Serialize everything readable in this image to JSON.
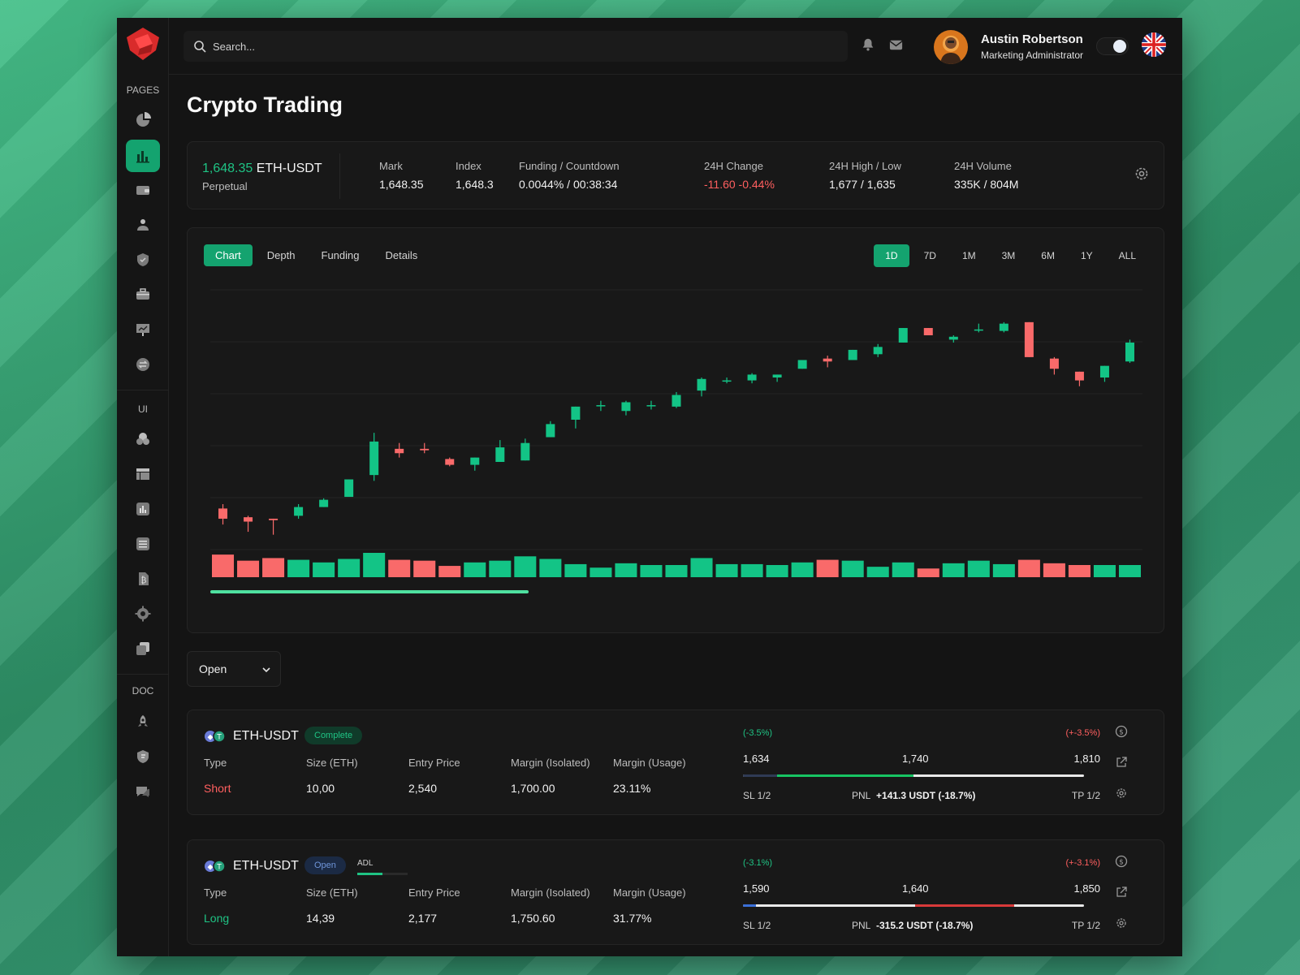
{
  "sidebar": {
    "sections": [
      "PAGES",
      "UI",
      "DOC"
    ],
    "pages_icons": [
      "pie-chart-icon",
      "bar-chart-icon",
      "wallet-icon",
      "user-coin-icon",
      "shield-icon",
      "briefcase-icon",
      "presentation-icon",
      "exchange-icon"
    ],
    "ui_icons": [
      "shapes-icon",
      "layout-icon",
      "chart-icon",
      "list-icon",
      "bitcoin-doc-icon",
      "settings-icon",
      "copy-icon"
    ],
    "doc_icons": [
      "rocket-icon",
      "badge-icon",
      "chat-icon"
    ]
  },
  "topbar": {
    "search_placeholder": "Search...",
    "user_name": "Austin Robertson",
    "user_role": "Marketing Administrator"
  },
  "page": {
    "title": "Crypto Trading"
  },
  "ticker": {
    "price": "1,648.35",
    "pair": "ETH-USDT",
    "type": "Perpetual",
    "stats": [
      {
        "label": "Mark",
        "value": "1,648.35"
      },
      {
        "label": "Index",
        "value": "1,648.3"
      },
      {
        "label": "Funding / Countdown",
        "value": "0.0044% / 00:38:34"
      },
      {
        "label": "24H Change",
        "value": "-11.60 -0.44%"
      },
      {
        "label": "24H High / Low",
        "value": "1,677 / 1,635"
      },
      {
        "label": "24H Volume",
        "value": "335K / 804M"
      }
    ]
  },
  "chart": {
    "tabs": [
      "Chart",
      "Depth",
      "Funding",
      "Details"
    ],
    "active_tab": "Chart",
    "ranges": [
      "1D",
      "7D",
      "1M",
      "3M",
      "6M",
      "1Y",
      "ALL"
    ],
    "active_range": "1D",
    "colors": {
      "up": "#13c486",
      "down": "#f96a6a"
    }
  },
  "chart_data": {
    "type": "candlestick",
    "grid": true,
    "candles": [
      {
        "o": 610,
        "c": 603,
        "h": 613,
        "l": 599,
        "v": 26
      },
      {
        "o": 604,
        "c": 601,
        "h": 605,
        "l": 594,
        "v": 19
      },
      {
        "o": 603,
        "c": 602,
        "h": 603,
        "l": 592,
        "v": 22
      },
      {
        "o": 605,
        "c": 611,
        "h": 613,
        "l": 603,
        "v": 20
      },
      {
        "o": 611,
        "c": 616,
        "h": 617,
        "l": 611,
        "v": 17
      },
      {
        "o": 618,
        "c": 630,
        "h": 630,
        "l": 618,
        "v": 21
      },
      {
        "o": 633,
        "c": 656,
        "h": 662,
        "l": 629,
        "v": 28
      },
      {
        "o": 651,
        "c": 648,
        "h": 655,
        "l": 645,
        "v": 20
      },
      {
        "o": 651,
        "c": 650,
        "h": 655,
        "l": 648,
        "v": 19
      },
      {
        "o": 644,
        "c": 640,
        "h": 645,
        "l": 639,
        "v": 13
      },
      {
        "o": 640,
        "c": 645,
        "h": 645,
        "l": 636,
        "v": 17
      },
      {
        "o": 642,
        "c": 652,
        "h": 657,
        "l": 642,
        "v": 19
      },
      {
        "o": 643,
        "c": 655,
        "h": 658,
        "l": 643,
        "v": 24
      },
      {
        "o": 659,
        "c": 668,
        "h": 670,
        "l": 659,
        "v": 21
      },
      {
        "o": 671,
        "c": 680,
        "h": 680,
        "l": 665,
        "v": 15
      },
      {
        "o": 681,
        "c": 681,
        "h": 684,
        "l": 677,
        "v": 11
      },
      {
        "o": 677,
        "c": 683,
        "h": 684,
        "l": 674,
        "v": 16
      },
      {
        "o": 681,
        "c": 681,
        "h": 684,
        "l": 678,
        "v": 14
      },
      {
        "o": 680,
        "c": 688,
        "h": 690,
        "l": 679,
        "v": 14
      },
      {
        "o": 691,
        "c": 699,
        "h": 700,
        "l": 687,
        "v": 22
      },
      {
        "o": 698,
        "c": 698,
        "h": 700,
        "l": 696,
        "v": 15
      },
      {
        "o": 698,
        "c": 702,
        "h": 703,
        "l": 696,
        "v": 15
      },
      {
        "o": 700,
        "c": 702,
        "h": 702,
        "l": 697,
        "v": 14
      },
      {
        "o": 706,
        "c": 712,
        "h": 712,
        "l": 706,
        "v": 17
      },
      {
        "o": 713,
        "c": 711,
        "h": 715,
        "l": 707,
        "v": 20
      },
      {
        "o": 712,
        "c": 719,
        "h": 719,
        "l": 712,
        "v": 19
      },
      {
        "o": 716,
        "c": 721,
        "h": 723,
        "l": 714,
        "v": 12
      },
      {
        "o": 724,
        "c": 734,
        "h": 734,
        "l": 724,
        "v": 17
      },
      {
        "o": 734,
        "c": 729,
        "h": 734,
        "l": 729,
        "v": 10
      },
      {
        "o": 726,
        "c": 728,
        "h": 729,
        "l": 724,
        "v": 16
      },
      {
        "o": 733,
        "c": 733,
        "h": 737,
        "l": 731,
        "v": 19
      },
      {
        "o": 732,
        "c": 737,
        "h": 738,
        "l": 731,
        "v": 15
      },
      {
        "o": 738,
        "c": 714,
        "h": 738,
        "l": 714,
        "v": 20
      },
      {
        "o": 713,
        "c": 706,
        "h": 714,
        "l": 702,
        "v": 16
      },
      {
        "o": 704,
        "c": 698,
        "h": 704,
        "l": 694,
        "v": 14
      },
      {
        "o": 700,
        "c": 708,
        "h": 708,
        "l": 697,
        "v": 14
      },
      {
        "o": 711,
        "c": 724,
        "h": 726,
        "l": 710,
        "v": 14
      }
    ]
  },
  "filter": {
    "value": "Open"
  },
  "positions": [
    {
      "pair": "ETH-USDT",
      "status": "Complete",
      "status_kind": "complete",
      "adl_label": "",
      "columns": [
        "Type",
        "Size (ETH)",
        "Entry Price",
        "Margin (Isolated)",
        "Margin (Usage)"
      ],
      "values": [
        "Short",
        "10,00",
        "2,540",
        "1,700.00",
        "23.11%"
      ],
      "type_kind": "short",
      "pct_left": "(-3.5%)",
      "pct_right": "(+-3.5%)",
      "levels": [
        "1,634",
        "1,740",
        "1,810"
      ],
      "sl": "SL 1/2",
      "pnl_label": "PNL",
      "pnl_value": "+141.3 USDT (-18.7%)",
      "tp": "TP 1/2"
    },
    {
      "pair": "ETH-USDT",
      "status": "Open",
      "status_kind": "open",
      "adl_label": "ADL",
      "adl_fraction": 0.5,
      "columns": [
        "Type",
        "Size (ETH)",
        "Entry Price",
        "Margin (Isolated)",
        "Margin (Usage)"
      ],
      "values": [
        "Long",
        "14,39",
        "2,177",
        "1,750.60",
        "31.77%"
      ],
      "type_kind": "long",
      "pct_left": "(-3.1%)",
      "pct_right": "(+-3.1%)",
      "levels": [
        "1,590",
        "1,640",
        "1,850"
      ],
      "sl": "SL 1/2",
      "pnl_label": "PNL",
      "pnl_value": "-315.2 USDT (-18.7%)",
      "tp": "TP 1/2"
    }
  ]
}
